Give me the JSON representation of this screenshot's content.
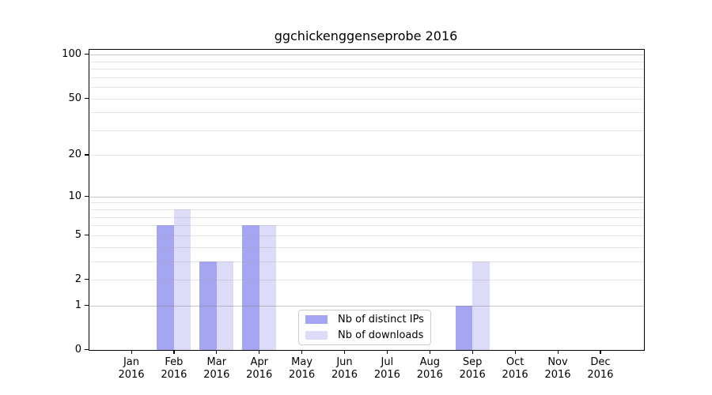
{
  "chart_data": {
    "type": "bar",
    "title": "ggchickenggenseprobe 2016",
    "categories": [
      "Jan",
      "Feb",
      "Mar",
      "Apr",
      "May",
      "Jun",
      "Jul",
      "Aug",
      "Sep",
      "Oct",
      "Nov",
      "Dec"
    ],
    "category_year": "2016",
    "series": [
      {
        "name": "Nb of distinct IPs",
        "color": "#a5a5f2",
        "values": [
          0,
          6,
          3,
          6,
          0,
          0,
          0,
          0,
          1,
          0,
          0,
          0
        ]
      },
      {
        "name": "Nb of downloads",
        "color": "#dcdcf8",
        "values": [
          0,
          8,
          3,
          6,
          0,
          0,
          0,
          0,
          3,
          0,
          0,
          0
        ]
      }
    ],
    "xlabel": "",
    "ylabel": "",
    "yscale": "log1p",
    "ylim": [
      0,
      108
    ],
    "yticks": [
      0,
      1,
      2,
      5,
      10,
      20,
      50,
      100
    ],
    "gridlines": {
      "major": [
        1,
        10,
        100
      ],
      "minor": [
        2,
        3,
        4,
        5,
        6,
        7,
        8,
        9,
        20,
        30,
        40,
        50,
        60,
        70,
        80,
        90
      ]
    },
    "grid": "on",
    "legend_position": "lower center"
  },
  "colors": {
    "background": "#ffffff",
    "spine": "#000000",
    "text": "#000000",
    "bar_distinct_ips": "#a5a5f2",
    "bar_downloads": "#dcdcf8",
    "legend_border": "#cccccc"
  }
}
